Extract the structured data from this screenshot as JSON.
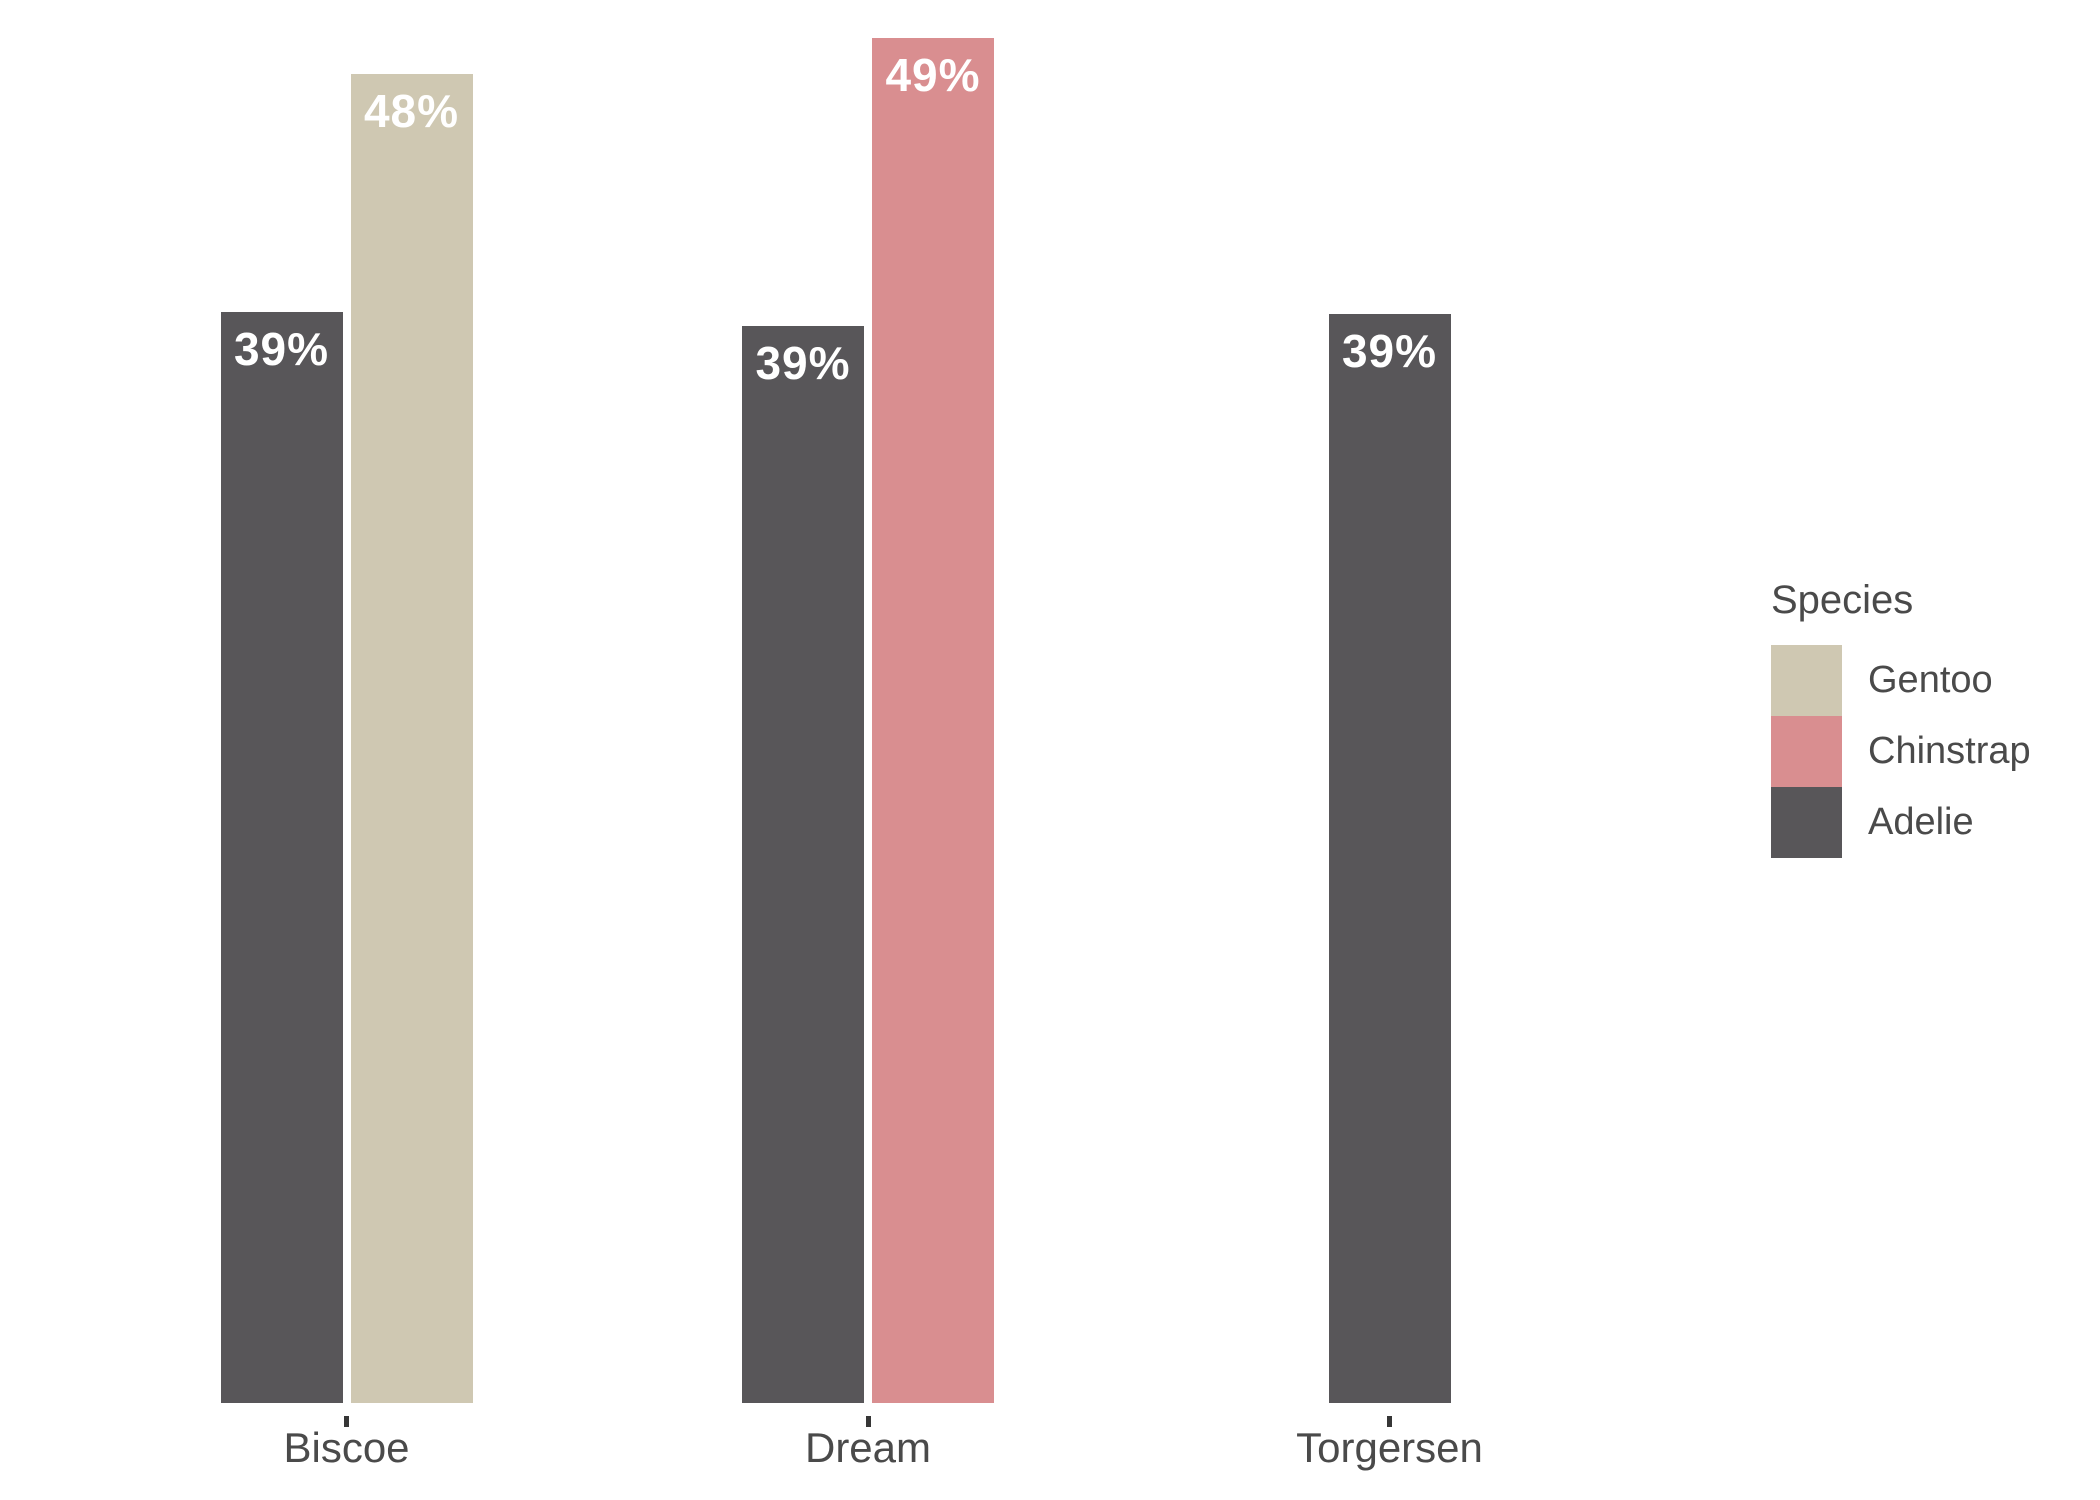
{
  "chart_data": {
    "type": "bar",
    "title": "",
    "xlabel": "",
    "ylabel": "",
    "grid": false,
    "y_axis_visible": false,
    "x_ticks_visible": true,
    "ylim": [
      0,
      51.3
    ],
    "categories": [
      "Biscoe",
      "Dream",
      "Torgersen"
    ],
    "series": [
      {
        "name": "Adelie",
        "color": "#585659",
        "values": [
          39.0,
          38.5,
          38.95
        ],
        "value_labels": [
          "39%",
          "39%",
          "39%"
        ]
      },
      {
        "name": "Gentoo",
        "color": "#CFC8B2",
        "values": [
          47.5,
          null,
          null
        ],
        "value_labels": [
          "48%",
          null,
          null
        ]
      },
      {
        "name": "Chinstrap",
        "color": "#D98E90",
        "values": [
          null,
          48.8,
          null
        ],
        "value_labels": [
          null,
          "49%",
          null
        ]
      }
    ],
    "legend": {
      "title": "Species",
      "position": "right",
      "entries": [
        {
          "label": "Gentoo",
          "color": "#CFC8B2"
        },
        {
          "label": "Chinstrap",
          "color": "#D98E90"
        },
        {
          "label": "Adelie",
          "color": "#585659"
        }
      ]
    },
    "style": {
      "background": "#FFFFFF",
      "bar_label_color": "#FFFFFF",
      "axis_text_color": "#4A4A4A",
      "tick_color": "#363636"
    }
  }
}
